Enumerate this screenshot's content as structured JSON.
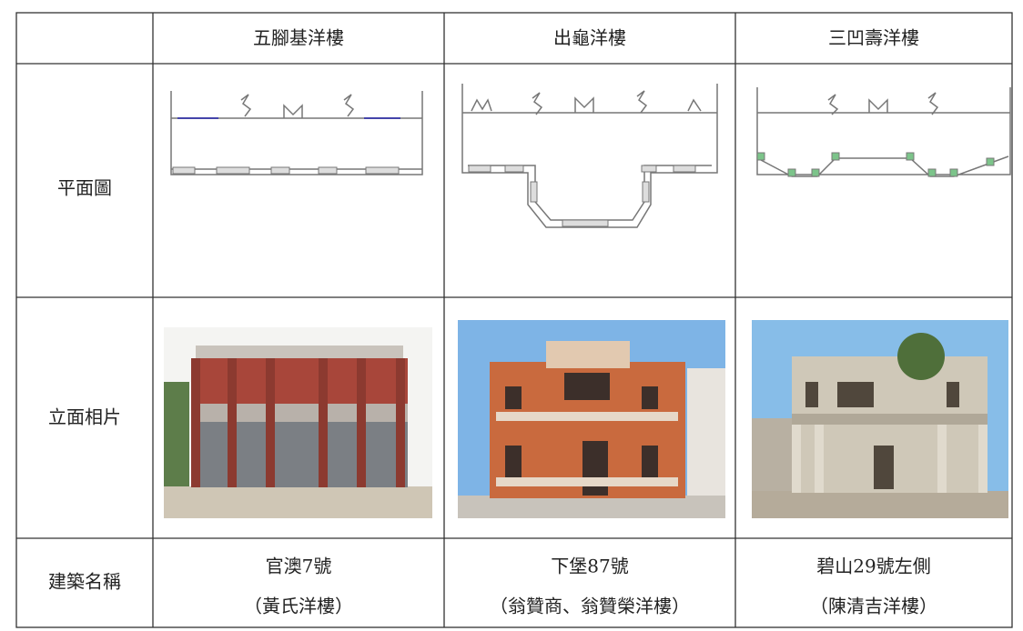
{
  "table": {
    "columns": [
      "五腳基洋樓",
      "出龜洋樓",
      "三凹壽洋樓"
    ],
    "row_labels": [
      "平面圖",
      "立面相片",
      "建築名稱"
    ],
    "names": [
      {
        "address": "官澳7號",
        "alias": "（黃氏洋樓）"
      },
      {
        "address": "下堡87號",
        "alias": "（翁贊商、翁贊榮洋樓）"
      },
      {
        "address": "碧山29號左側",
        "alias": "（陳清吉洋樓）"
      }
    ]
  }
}
